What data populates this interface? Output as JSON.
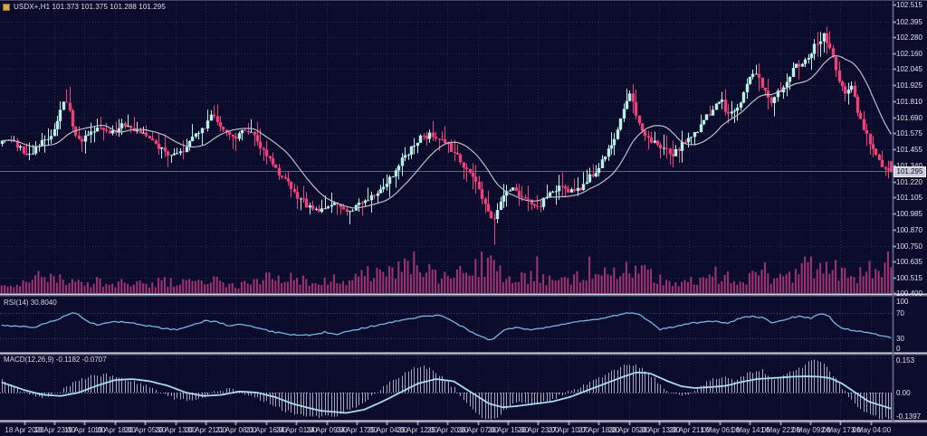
{
  "window": {
    "title": "USDX+,H1 101.373 101.375 101.288 101.295"
  },
  "panels": {
    "rsi_label": "RSI(14) 30.8040",
    "macd_label": "MACD(12,26,9) -0.1182 -0.0707"
  },
  "colors": {
    "background": "#0b0b2b",
    "grid": "#28284f",
    "bull": "#b9efe9",
    "bear": "#f0407c",
    "volume": "#a03470",
    "moving_average": "#bcbcca",
    "rsi_line": "#76b6e0",
    "rsi_levels": "#45457e",
    "macd_signal": "#a8dcec",
    "macd_histogram": "#c2c2d4",
    "macd_zero_line": "#8e8ea6",
    "separator": "#cfd2dc",
    "axis_text": "#e2e2ee",
    "bid_line": "#a0a5b9",
    "price_tag_bg": "#c9cdd9"
  },
  "chart_data": {
    "type": "candlestick",
    "symbol": "USDX+",
    "timeframe": "H1",
    "ohlc_current": {
      "open": 101.373,
      "high": 101.375,
      "low": 101.288,
      "close": 101.295
    },
    "y_axis_ticks": [
      "102.515",
      "102.395",
      "102.280",
      "102.160",
      "102.045",
      "101.925",
      "101.810",
      "101.690",
      "101.575",
      "101.455",
      "101.340",
      "101.220",
      "101.105",
      "100.985",
      "100.870",
      "100.750",
      "100.635",
      "100.515",
      "100.400"
    ],
    "x_axis_ticks": [
      "18 Apr 2023",
      "18 Apr 23:00",
      "19 Apr 10:00",
      "19 Apr 18:00",
      "20 Apr 05:00",
      "20 Apr 13:00",
      "20 Apr 21:00",
      "21 Apr 08:00",
      "21 Apr 16:00",
      "24 Apr 01:00",
      "24 Apr 09:00",
      "24 Apr 17:00",
      "25 Apr 04:00",
      "25 Apr 12:00",
      "25 Apr 20:00",
      "26 Apr 07:00",
      "26 Apr 15:00",
      "26 Apr 23:00",
      "27 Apr 10:00",
      "27 Apr 18:00",
      "28 Apr 05:00",
      "28 Apr 13:00",
      "28 Apr 21:00",
      "1 May 06:00",
      "1 May 14:00",
      "1 May 22:00",
      "2 May 09:00",
      "2 May 17:00",
      "3 May 04:00"
    ],
    "candle_count": 290,
    "ma_period": 16,
    "close_path": [
      [
        0.0,
        101.5
      ],
      [
        0.01,
        101.55
      ],
      [
        0.022,
        101.47
      ],
      [
        0.034,
        101.42
      ],
      [
        0.046,
        101.5
      ],
      [
        0.058,
        101.56
      ],
      [
        0.068,
        101.72
      ],
      [
        0.075,
        101.84
      ],
      [
        0.082,
        101.66
      ],
      [
        0.09,
        101.52
      ],
      [
        0.1,
        101.57
      ],
      [
        0.112,
        101.63
      ],
      [
        0.125,
        101.56
      ],
      [
        0.138,
        101.64
      ],
      [
        0.152,
        101.6
      ],
      [
        0.165,
        101.56
      ],
      [
        0.18,
        101.47
      ],
      [
        0.195,
        101.4
      ],
      [
        0.21,
        101.48
      ],
      [
        0.228,
        101.6
      ],
      [
        0.24,
        101.72
      ],
      [
        0.25,
        101.62
      ],
      [
        0.262,
        101.53
      ],
      [
        0.272,
        101.62
      ],
      [
        0.285,
        101.56
      ],
      [
        0.3,
        101.42
      ],
      [
        0.315,
        101.28
      ],
      [
        0.33,
        101.15
      ],
      [
        0.345,
        101.05
      ],
      [
        0.36,
        101.0
      ],
      [
        0.375,
        101.06
      ],
      [
        0.39,
        100.99
      ],
      [
        0.405,
        101.06
      ],
      [
        0.42,
        101.13
      ],
      [
        0.44,
        101.26
      ],
      [
        0.455,
        101.41
      ],
      [
        0.47,
        101.53
      ],
      [
        0.485,
        101.58
      ],
      [
        0.5,
        101.51
      ],
      [
        0.515,
        101.4
      ],
      [
        0.53,
        101.27
      ],
      [
        0.545,
        101.04
      ],
      [
        0.553,
        100.92
      ],
      [
        0.562,
        101.1
      ],
      [
        0.575,
        101.18
      ],
      [
        0.59,
        101.09
      ],
      [
        0.602,
        101.02
      ],
      [
        0.616,
        101.12
      ],
      [
        0.63,
        101.18
      ],
      [
        0.645,
        101.14
      ],
      [
        0.66,
        101.24
      ],
      [
        0.675,
        101.35
      ],
      [
        0.69,
        101.56
      ],
      [
        0.7,
        101.78
      ],
      [
        0.707,
        101.87
      ],
      [
        0.716,
        101.68
      ],
      [
        0.726,
        101.55
      ],
      [
        0.74,
        101.47
      ],
      [
        0.755,
        101.42
      ],
      [
        0.77,
        101.53
      ],
      [
        0.785,
        101.62
      ],
      [
        0.798,
        101.74
      ],
      [
        0.808,
        101.84
      ],
      [
        0.818,
        101.7
      ],
      [
        0.828,
        101.77
      ],
      [
        0.838,
        101.93
      ],
      [
        0.848,
        102.04
      ],
      [
        0.857,
        101.9
      ],
      [
        0.865,
        101.8
      ],
      [
        0.875,
        101.89
      ],
      [
        0.885,
        102.0
      ],
      [
        0.895,
        102.08
      ],
      [
        0.905,
        102.13
      ],
      [
        0.915,
        102.23
      ],
      [
        0.925,
        102.3
      ],
      [
        0.932,
        102.18
      ],
      [
        0.94,
        102.0
      ],
      [
        0.948,
        101.88
      ],
      [
        0.955,
        101.92
      ],
      [
        0.963,
        101.72
      ],
      [
        0.972,
        101.56
      ],
      [
        0.982,
        101.43
      ],
      [
        0.991,
        101.34
      ],
      [
        1.0,
        101.295
      ]
    ],
    "wick_spikes": [
      {
        "t": 0.075,
        "high": 101.92
      },
      {
        "t": 0.24,
        "high": 101.79
      },
      {
        "t": 0.39,
        "low": 100.91
      },
      {
        "t": 0.553,
        "low": 100.76
      },
      {
        "t": 0.707,
        "high": 101.94
      },
      {
        "t": 0.925,
        "high": 102.36
      }
    ],
    "volume_envelope": [
      [
        0.0,
        10
      ],
      [
        0.03,
        14
      ],
      [
        0.06,
        18
      ],
      [
        0.09,
        12
      ],
      [
        0.12,
        15
      ],
      [
        0.15,
        10
      ],
      [
        0.18,
        14
      ],
      [
        0.21,
        12
      ],
      [
        0.24,
        16
      ],
      [
        0.27,
        10
      ],
      [
        0.3,
        18
      ],
      [
        0.33,
        22
      ],
      [
        0.36,
        14
      ],
      [
        0.39,
        20
      ],
      [
        0.42,
        25
      ],
      [
        0.445,
        30
      ],
      [
        0.46,
        38
      ],
      [
        0.475,
        28
      ],
      [
        0.49,
        20
      ],
      [
        0.51,
        24
      ],
      [
        0.53,
        30
      ],
      [
        0.545,
        36
      ],
      [
        0.56,
        26
      ],
      [
        0.58,
        18
      ],
      [
        0.6,
        22
      ],
      [
        0.62,
        16
      ],
      [
        0.64,
        20
      ],
      [
        0.66,
        24
      ],
      [
        0.68,
        28
      ],
      [
        0.7,
        34
      ],
      [
        0.715,
        30
      ],
      [
        0.73,
        22
      ],
      [
        0.75,
        14
      ],
      [
        0.77,
        12
      ],
      [
        0.79,
        16
      ],
      [
        0.81,
        20
      ],
      [
        0.83,
        18
      ],
      [
        0.85,
        24
      ],
      [
        0.87,
        16
      ],
      [
        0.89,
        22
      ],
      [
        0.905,
        30
      ],
      [
        0.92,
        40
      ],
      [
        0.935,
        30
      ],
      [
        0.95,
        20
      ],
      [
        0.965,
        26
      ],
      [
        0.98,
        34
      ],
      [
        1.0,
        28
      ]
    ],
    "indicators": {
      "rsi": {
        "period": 14,
        "current": 30.804,
        "levels": [
          70,
          30
        ],
        "axis_ticks": [
          "100",
          "70",
          "30",
          "0"
        ],
        "path": [
          [
            0.0,
            52
          ],
          [
            0.02,
            50
          ],
          [
            0.04,
            48
          ],
          [
            0.055,
            55
          ],
          [
            0.07,
            63
          ],
          [
            0.08,
            70
          ],
          [
            0.088,
            71
          ],
          [
            0.098,
            58
          ],
          [
            0.112,
            52
          ],
          [
            0.127,
            56
          ],
          [
            0.14,
            57
          ],
          [
            0.155,
            53
          ],
          [
            0.17,
            50
          ],
          [
            0.185,
            46
          ],
          [
            0.2,
            44
          ],
          [
            0.215,
            50
          ],
          [
            0.232,
            59
          ],
          [
            0.245,
            56
          ],
          [
            0.26,
            50
          ],
          [
            0.275,
            53
          ],
          [
            0.29,
            46
          ],
          [
            0.31,
            40
          ],
          [
            0.33,
            36
          ],
          [
            0.35,
            35
          ],
          [
            0.365,
            40
          ],
          [
            0.38,
            37
          ],
          [
            0.4,
            44
          ],
          [
            0.42,
            50
          ],
          [
            0.445,
            58
          ],
          [
            0.465,
            63
          ],
          [
            0.48,
            66
          ],
          [
            0.492,
            68
          ],
          [
            0.503,
            62
          ],
          [
            0.516,
            52
          ],
          [
            0.53,
            40
          ],
          [
            0.544,
            31
          ],
          [
            0.552,
            27
          ],
          [
            0.565,
            42
          ],
          [
            0.58,
            48
          ],
          [
            0.595,
            44
          ],
          [
            0.61,
            47
          ],
          [
            0.625,
            50
          ],
          [
            0.64,
            55
          ],
          [
            0.655,
            58
          ],
          [
            0.67,
            60
          ],
          [
            0.685,
            65
          ],
          [
            0.7,
            70
          ],
          [
            0.71,
            72
          ],
          [
            0.72,
            67
          ],
          [
            0.731,
            55
          ],
          [
            0.741,
            44
          ],
          [
            0.755,
            48
          ],
          [
            0.77,
            53
          ],
          [
            0.785,
            56
          ],
          [
            0.8,
            58
          ],
          [
            0.815,
            54
          ],
          [
            0.83,
            62
          ],
          [
            0.845,
            66
          ],
          [
            0.855,
            64
          ],
          [
            0.866,
            56
          ],
          [
            0.877,
            58
          ],
          [
            0.89,
            64
          ],
          [
            0.9,
            66
          ],
          [
            0.91,
            62
          ],
          [
            0.92,
            70
          ],
          [
            0.93,
            67
          ],
          [
            0.94,
            50
          ],
          [
            0.95,
            45
          ],
          [
            0.962,
            42
          ],
          [
            0.972,
            40
          ],
          [
            0.982,
            37
          ],
          [
            0.992,
            33
          ],
          [
            1.0,
            30.8
          ]
        ]
      },
      "macd": {
        "fast": 12,
        "slow": 26,
        "signal": 9,
        "current_main": -0.1182,
        "current_signal": -0.0707,
        "axis_ticks": [
          "0.153",
          "0.00",
          "-0.1397"
        ],
        "main_path": [
          [
            0.0,
            0.06
          ],
          [
            0.03,
            0.0
          ],
          [
            0.05,
            -0.02
          ],
          [
            0.07,
            0.01
          ],
          [
            0.085,
            0.05
          ],
          [
            0.1,
            0.07
          ],
          [
            0.12,
            0.08
          ],
          [
            0.14,
            0.06
          ],
          [
            0.16,
            0.04
          ],
          [
            0.18,
            0.0
          ],
          [
            0.2,
            -0.03
          ],
          [
            0.22,
            -0.035
          ],
          [
            0.24,
            0.0
          ],
          [
            0.26,
            0.02
          ],
          [
            0.28,
            -0.01
          ],
          [
            0.3,
            -0.04
          ],
          [
            0.32,
            -0.08
          ],
          [
            0.34,
            -0.1
          ],
          [
            0.36,
            -0.11
          ],
          [
            0.38,
            -0.1
          ],
          [
            0.4,
            -0.06
          ],
          [
            0.42,
            -0.01
          ],
          [
            0.44,
            0.05
          ],
          [
            0.46,
            0.1
          ],
          [
            0.475,
            0.12
          ],
          [
            0.49,
            0.09
          ],
          [
            0.51,
            0.02
          ],
          [
            0.525,
            -0.05
          ],
          [
            0.54,
            -0.11
          ],
          [
            0.553,
            -0.13
          ],
          [
            0.565,
            -0.08
          ],
          [
            0.58,
            -0.045
          ],
          [
            0.6,
            -0.05
          ],
          [
            0.615,
            -0.04
          ],
          [
            0.63,
            -0.01
          ],
          [
            0.65,
            0.02
          ],
          [
            0.67,
            0.06
          ],
          [
            0.69,
            0.1
          ],
          [
            0.705,
            0.13
          ],
          [
            0.72,
            0.11
          ],
          [
            0.735,
            0.06
          ],
          [
            0.75,
            0.0
          ],
          [
            0.765,
            -0.02
          ],
          [
            0.78,
            0.01
          ],
          [
            0.795,
            0.05
          ],
          [
            0.81,
            0.07
          ],
          [
            0.825,
            0.05
          ],
          [
            0.84,
            0.09
          ],
          [
            0.855,
            0.1
          ],
          [
            0.87,
            0.05
          ],
          [
            0.885,
            0.09
          ],
          [
            0.9,
            0.11
          ],
          [
            0.912,
            0.15
          ],
          [
            0.922,
            0.14
          ],
          [
            0.932,
            0.09
          ],
          [
            0.945,
            0.02
          ],
          [
            0.958,
            -0.05
          ],
          [
            0.97,
            -0.09
          ],
          [
            0.985,
            -0.11
          ],
          [
            1.0,
            -0.1182
          ]
        ],
        "signal_path": [
          [
            0.0,
            0.05
          ],
          [
            0.03,
            0.01
          ],
          [
            0.05,
            -0.01
          ],
          [
            0.07,
            -0.015
          ],
          [
            0.09,
            0.0
          ],
          [
            0.11,
            0.03
          ],
          [
            0.13,
            0.055
          ],
          [
            0.15,
            0.06
          ],
          [
            0.17,
            0.05
          ],
          [
            0.19,
            0.03
          ],
          [
            0.21,
            0.0
          ],
          [
            0.23,
            -0.015
          ],
          [
            0.25,
            -0.01
          ],
          [
            0.27,
            0.005
          ],
          [
            0.29,
            0.0
          ],
          [
            0.31,
            -0.02
          ],
          [
            0.33,
            -0.05
          ],
          [
            0.36,
            -0.08
          ],
          [
            0.39,
            -0.09
          ],
          [
            0.41,
            -0.075
          ],
          [
            0.43,
            -0.04
          ],
          [
            0.45,
            0.0
          ],
          [
            0.47,
            0.04
          ],
          [
            0.49,
            0.06
          ],
          [
            0.51,
            0.05
          ],
          [
            0.53,
            0.0
          ],
          [
            0.55,
            -0.05
          ],
          [
            0.565,
            -0.065
          ],
          [
            0.58,
            -0.06
          ],
          [
            0.6,
            -0.05
          ],
          [
            0.62,
            -0.04
          ],
          [
            0.64,
            -0.02
          ],
          [
            0.66,
            0.01
          ],
          [
            0.68,
            0.04
          ],
          [
            0.7,
            0.07
          ],
          [
            0.715,
            0.09
          ],
          [
            0.73,
            0.085
          ],
          [
            0.75,
            0.05
          ],
          [
            0.765,
            0.028
          ],
          [
            0.78,
            0.02
          ],
          [
            0.8,
            0.025
          ],
          [
            0.815,
            0.03
          ],
          [
            0.83,
            0.045
          ],
          [
            0.85,
            0.06
          ],
          [
            0.87,
            0.065
          ],
          [
            0.89,
            0.07
          ],
          [
            0.905,
            0.072
          ],
          [
            0.92,
            0.07
          ],
          [
            0.932,
            0.064
          ],
          [
            0.945,
            0.04
          ],
          [
            0.96,
            0.0
          ],
          [
            0.975,
            -0.04
          ],
          [
            1.0,
            -0.0707
          ]
        ]
      }
    }
  }
}
